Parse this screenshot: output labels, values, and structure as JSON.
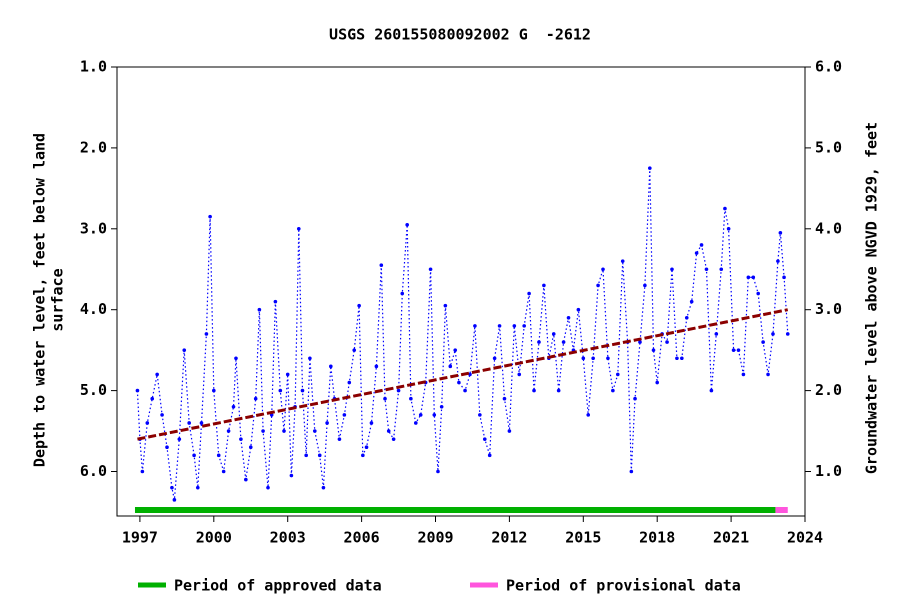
{
  "chart_data": {
    "type": "line",
    "title": "USGS 260155080092002 G  -2612",
    "y_label": [
      "Depth to water level, feet below land",
      "surface"
    ],
    "y2_label": "Groundwater level above NGVD 1929, feet",
    "xlim": [
      1996.07,
      2024
    ],
    "xticks": [
      1997,
      2000,
      2003,
      2006,
      2009,
      2012,
      2015,
      2018,
      2021,
      2024
    ],
    "ylim": [
      1.0,
      6.55
    ],
    "y_inverted": true,
    "yticks": [
      {
        "value": 1,
        "label": "1.0"
      },
      {
        "value": 2,
        "label": "2.0"
      },
      {
        "value": 3,
        "label": "3.0"
      },
      {
        "value": 4,
        "label": "4.0"
      },
      {
        "value": 5,
        "label": "5.0"
      },
      {
        "value": 6,
        "label": "6.0"
      }
    ],
    "y2lim": [
      0.45,
      6.0
    ],
    "y2ticks": [
      {
        "value": 6,
        "label": "6.0"
      },
      {
        "value": 5,
        "label": "5.0"
      },
      {
        "value": 4,
        "label": "4.0"
      },
      {
        "value": 3,
        "label": "3.0"
      },
      {
        "value": 2,
        "label": "2.0"
      },
      {
        "value": 1,
        "label": "1.0"
      }
    ],
    "series": [
      {
        "color": "#0000ff",
        "x": [
          1996.9,
          1997.0,
          1997.1,
          1997.3,
          1997.5,
          1997.7,
          1997.9,
          1998.1,
          1998.3,
          1998.4,
          1998.6,
          1998.8,
          1999.0,
          1999.2,
          1999.35,
          1999.5,
          1999.7,
          1999.85,
          2000.0,
          2000.2,
          2000.4,
          2000.6,
          2000.8,
          2000.9,
          2001.1,
          2001.3,
          2001.5,
          2001.7,
          2001.85,
          2002.0,
          2002.2,
          2002.35,
          2002.5,
          2002.7,
          2002.85,
          2003.0,
          2003.15,
          2003.3,
          2003.45,
          2003.6,
          2003.75,
          2003.9,
          2004.1,
          2004.3,
          2004.45,
          2004.6,
          2004.75,
          2004.9,
          2005.1,
          2005.3,
          2005.5,
          2005.7,
          2005.9,
          2006.05,
          2006.2,
          2006.4,
          2006.6,
          2006.8,
          2006.95,
          2007.1,
          2007.3,
          2007.5,
          2007.65,
          2007.85,
          2008.0,
          2008.2,
          2008.4,
          2008.6,
          2008.8,
          2008.95,
          2009.1,
          2009.25,
          2009.4,
          2009.6,
          2009.8,
          2009.95,
          2010.2,
          2010.4,
          2010.6,
          2010.8,
          2011.0,
          2011.2,
          2011.4,
          2011.6,
          2011.8,
          2012.0,
          2012.2,
          2012.4,
          2012.6,
          2012.8,
          2013.0,
          2013.2,
          2013.4,
          2013.6,
          2013.8,
          2014.0,
          2014.2,
          2014.4,
          2014.6,
          2014.8,
          2015.0,
          2015.2,
          2015.4,
          2015.6,
          2015.8,
          2016.0,
          2016.2,
          2016.4,
          2016.6,
          2016.8,
          2016.95,
          2017.1,
          2017.3,
          2017.5,
          2017.7,
          2017.85,
          2018.0,
          2018.2,
          2018.4,
          2018.6,
          2018.8,
          2019.0,
          2019.2,
          2019.4,
          2019.6,
          2019.8,
          2020.0,
          2020.2,
          2020.4,
          2020.6,
          2020.75,
          2020.9,
          2021.1,
          2021.3,
          2021.5,
          2021.7,
          2021.9,
          2022.1,
          2022.3,
          2022.5,
          2022.7,
          2022.9,
          2023.0,
          2023.15,
          2023.3
        ],
        "values": [
          5.0,
          5.6,
          6.0,
          5.4,
          5.1,
          4.8,
          5.3,
          5.7,
          6.2,
          6.35,
          5.6,
          4.5,
          5.4,
          5.8,
          6.2,
          5.4,
          4.3,
          2.85,
          5.0,
          5.8,
          6.0,
          5.5,
          5.2,
          4.6,
          5.6,
          6.1,
          5.7,
          5.1,
          4.0,
          5.5,
          6.2,
          5.3,
          3.9,
          5.0,
          5.5,
          4.8,
          6.05,
          5.2,
          3.0,
          5.0,
          5.8,
          4.6,
          5.5,
          5.8,
          6.2,
          5.4,
          4.7,
          5.1,
          5.6,
          5.3,
          4.9,
          4.5,
          3.95,
          5.8,
          5.7,
          5.4,
          4.7,
          3.45,
          5.1,
          5.5,
          5.6,
          5.0,
          3.8,
          2.95,
          5.1,
          5.4,
          5.3,
          4.9,
          3.5,
          5.3,
          6.0,
          5.2,
          3.95,
          4.7,
          4.5,
          4.9,
          5.0,
          4.8,
          4.2,
          5.3,
          5.6,
          5.8,
          4.6,
          4.2,
          5.1,
          5.5,
          4.2,
          4.8,
          4.2,
          3.8,
          5.0,
          4.4,
          3.7,
          4.6,
          4.3,
          5.0,
          4.4,
          4.1,
          4.5,
          4.0,
          4.6,
          5.3,
          4.6,
          3.7,
          3.5,
          4.6,
          5.0,
          4.8,
          3.4,
          4.4,
          6.0,
          5.1,
          4.4,
          3.7,
          2.25,
          4.5,
          4.9,
          4.3,
          4.4,
          3.5,
          4.6,
          4.6,
          4.1,
          3.9,
          3.3,
          3.2,
          3.5,
          5.0,
          4.3,
          3.5,
          2.75,
          3.0,
          4.5,
          4.5,
          4.8,
          3.6,
          3.6,
          3.8,
          4.4,
          4.8,
          4.3,
          3.4,
          3.05,
          3.6,
          4.3
        ]
      }
    ],
    "trend": {
      "color": "#8b0000",
      "x": [
        1996.9,
        2023.3
      ],
      "values": [
        5.6,
        4.0
      ]
    },
    "periods": [
      {
        "name": "Period of approved data",
        "color": "#00b000",
        "start": 1996.8,
        "end": 2022.8
      },
      {
        "name": "Period of provisional data",
        "color": "#ff55dd",
        "start": 2022.8,
        "end": 2023.3
      }
    ]
  }
}
